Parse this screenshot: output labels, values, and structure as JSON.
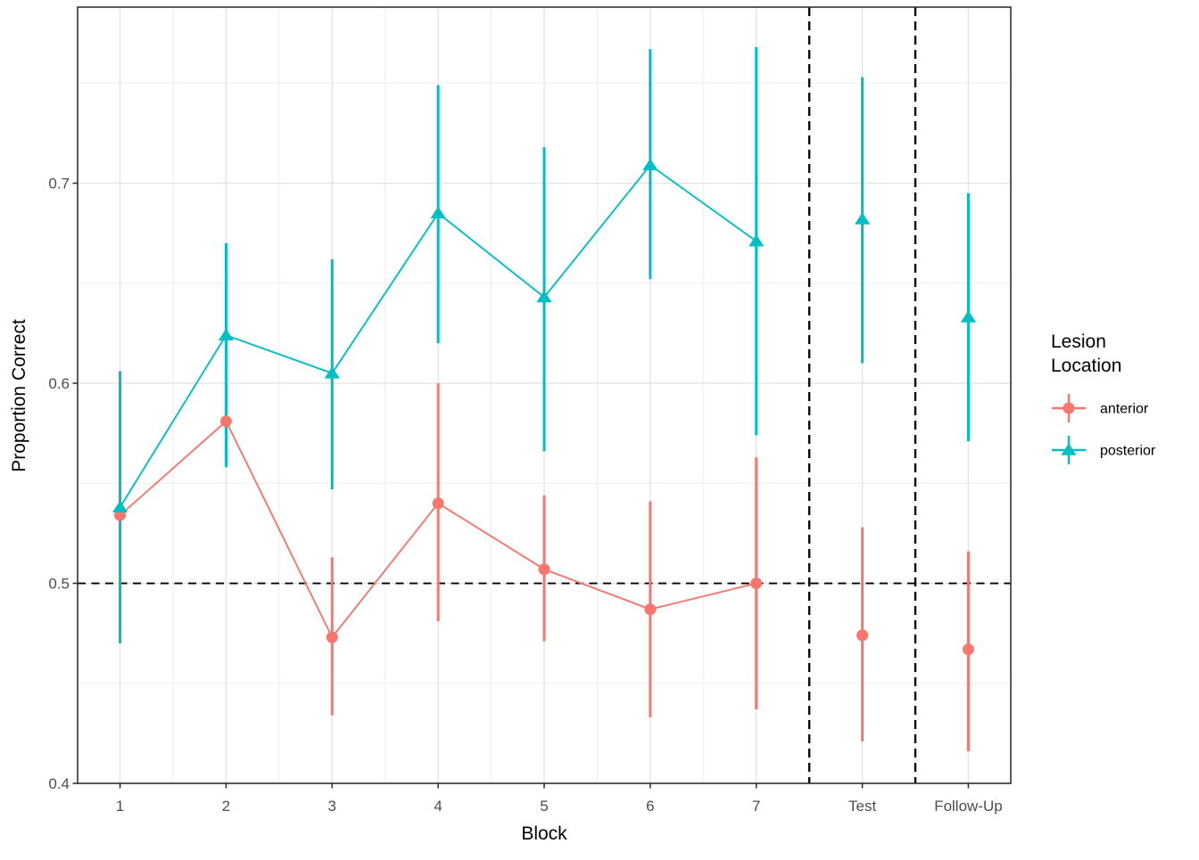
{
  "chart_data": {
    "type": "line",
    "title": "",
    "xlabel": "Block",
    "ylabel": "Proportion Correct",
    "x_tick_labels": [
      "1",
      "2",
      "3",
      "4",
      "5",
      "6",
      "7",
      "Test",
      "Follow-Up"
    ],
    "x_positions": [
      1,
      2,
      3,
      4,
      5,
      6,
      7,
      8,
      9
    ],
    "y_ticks": [
      {
        "label": "0.4",
        "value": 0.4
      },
      {
        "label": "0.5",
        "value": 0.5
      },
      {
        "label": "0.6",
        "value": 0.6
      },
      {
        "label": "0.7",
        "value": 0.7
      }
    ],
    "y_minor_ticks": [
      0.45,
      0.55,
      0.65,
      0.75
    ],
    "x_minor_positions": [
      1.5,
      2.5,
      3.5,
      4.5,
      5.5,
      6.5,
      7.5,
      8.5
    ],
    "xlim": [
      0.6,
      9.4
    ],
    "ylim": [
      0.4,
      0.788
    ],
    "grid": true,
    "reference_lines": {
      "hline_y": 0.5,
      "vlines_x": [
        7.5,
        8.5
      ],
      "style": "dashed",
      "color": "#000000"
    },
    "connected_x_range": [
      1,
      7
    ],
    "series": [
      {
        "name": "anterior",
        "color": "#F8766D",
        "marker": "circle",
        "values": [
          0.534,
          0.581,
          0.473,
          0.54,
          0.507,
          0.487,
          0.5,
          0.474,
          0.467
        ],
        "ci_low": [
          0.473,
          0.559,
          0.434,
          0.481,
          0.471,
          0.433,
          0.437,
          0.421,
          0.416
        ],
        "ci_high": [
          0.595,
          0.604,
          0.513,
          0.6,
          0.544,
          0.541,
          0.563,
          0.528,
          0.516
        ]
      },
      {
        "name": "posterior",
        "color": "#00BFC4",
        "marker": "triangle",
        "values": [
          0.538,
          0.624,
          0.605,
          0.685,
          0.643,
          0.709,
          0.671,
          0.682,
          0.633
        ],
        "ci_low": [
          0.47,
          0.558,
          0.547,
          0.62,
          0.566,
          0.652,
          0.574,
          0.61,
          0.571
        ],
        "ci_high": [
          0.606,
          0.67,
          0.662,
          0.749,
          0.718,
          0.767,
          0.768,
          0.753,
          0.695
        ]
      }
    ],
    "legend": {
      "title": "Lesion Location",
      "title_lines": [
        "Lesion",
        "Location"
      ],
      "position": "right",
      "entries": [
        {
          "label": "anterior",
          "color": "#F8766D",
          "marker": "circle"
        },
        {
          "label": "posterior",
          "color": "#00BFC4",
          "marker": "triangle"
        }
      ]
    },
    "colors": {
      "panel_border": "#333333",
      "grid_major": "#E4E4E4",
      "grid_minor": "#EFEFEF",
      "tick_label": "#4D4D4D",
      "axis_tick": "#333333",
      "background": "#FFFFFF"
    }
  }
}
